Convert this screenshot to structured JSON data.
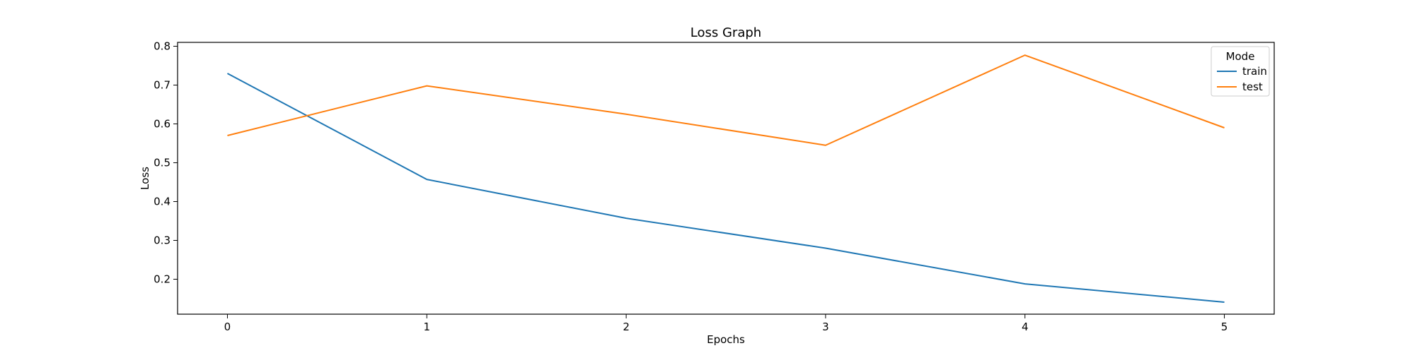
{
  "chart_data": {
    "type": "line",
    "title": "Loss Graph",
    "xlabel": "Epochs",
    "ylabel": "Loss",
    "x": [
      0,
      1,
      2,
      3,
      4,
      5
    ],
    "xlim": [
      -0.25,
      5.25
    ],
    "ylim": [
      0.11,
      0.81
    ],
    "xticks": [
      0,
      1,
      2,
      3,
      4,
      5
    ],
    "yticks": [
      0.2,
      0.3,
      0.4,
      0.5,
      0.6,
      0.7,
      0.8
    ],
    "ytick_labels": [
      "0.2",
      "0.3",
      "0.4",
      "0.5",
      "0.6",
      "0.7",
      "0.8"
    ],
    "grid": false,
    "legend": {
      "title": "Mode",
      "placement": "top-right"
    },
    "series": [
      {
        "name": "train",
        "color": "#1f77b4",
        "values": [
          0.73,
          0.457,
          0.357,
          0.28,
          0.188,
          0.141
        ]
      },
      {
        "name": "test",
        "color": "#ff7f0e",
        "values": [
          0.57,
          0.698,
          0.625,
          0.545,
          0.777,
          0.59
        ]
      }
    ]
  }
}
